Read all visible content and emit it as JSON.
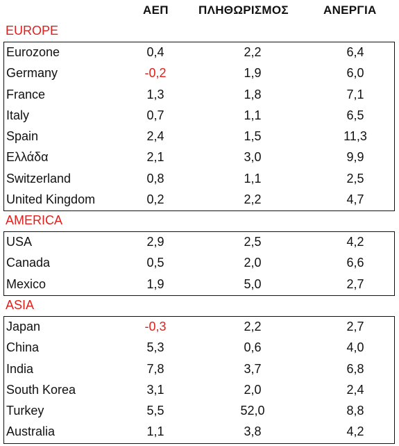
{
  "headers": {
    "gdp": "ΑΕΠ",
    "inflation": "ΠΛΗΘΩΡΙΣΜΟΣ",
    "unemployment": "ΑΝΕΡΓΙΑ"
  },
  "colors": {
    "accent_red": "#e0201c",
    "text": "#111111",
    "border": "#111111"
  },
  "groups": [
    {
      "region": "EUROPE",
      "rows": [
        {
          "name": "Eurozone",
          "gdp": "0,4",
          "inflation": "2,2",
          "unemployment": "6,4"
        },
        {
          "name": "Germany",
          "gdp": "-0,2",
          "inflation": "1,9",
          "unemployment": "6,0"
        },
        {
          "name": "France",
          "gdp": "1,3",
          "inflation": "1,8",
          "unemployment": "7,1"
        },
        {
          "name": "Italy",
          "gdp": "0,7",
          "inflation": "1,1",
          "unemployment": "6,5"
        },
        {
          "name": "Spain",
          "gdp": "2,4",
          "inflation": "1,5",
          "unemployment": "11,3"
        },
        {
          "name": "Ελλάδα",
          "gdp": "2,1",
          "inflation": "3,0",
          "unemployment": "9,9"
        },
        {
          "name": "Switzerland",
          "gdp": "0,8",
          "inflation": "1,1",
          "unemployment": "2,5"
        },
        {
          "name": "United Kingdom",
          "gdp": "0,2",
          "inflation": "2,2",
          "unemployment": "4,7"
        }
      ]
    },
    {
      "region": "AMERICA",
      "rows": [
        {
          "name": "USA",
          "gdp": "2,9",
          "inflation": "2,5",
          "unemployment": "4,2"
        },
        {
          "name": "Canada",
          "gdp": "0,5",
          "inflation": "2,0",
          "unemployment": "6,6"
        },
        {
          "name": "Mexico",
          "gdp": "1,9",
          "inflation": "5,0",
          "unemployment": "2,7"
        }
      ]
    },
    {
      "region": "ASIA",
      "rows": [
        {
          "name": "Japan",
          "gdp": "-0,3",
          "inflation": "2,2",
          "unemployment": "2,7"
        },
        {
          "name": "China",
          "gdp": "5,3",
          "inflation": "0,6",
          "unemployment": "4,0"
        },
        {
          "name": "India",
          "gdp": "7,8",
          "inflation": "3,7",
          "unemployment": "6,8"
        },
        {
          "name": "South Korea",
          "gdp": "3,1",
          "inflation": "2,0",
          "unemployment": "2,4"
        },
        {
          "name": "Turkey",
          "gdp": "5,5",
          "inflation": "52,0",
          "unemployment": "8,8"
        },
        {
          "name": "Australia",
          "gdp": "1,1",
          "inflation": "3,8",
          "unemployment": "4,2"
        }
      ]
    }
  ]
}
